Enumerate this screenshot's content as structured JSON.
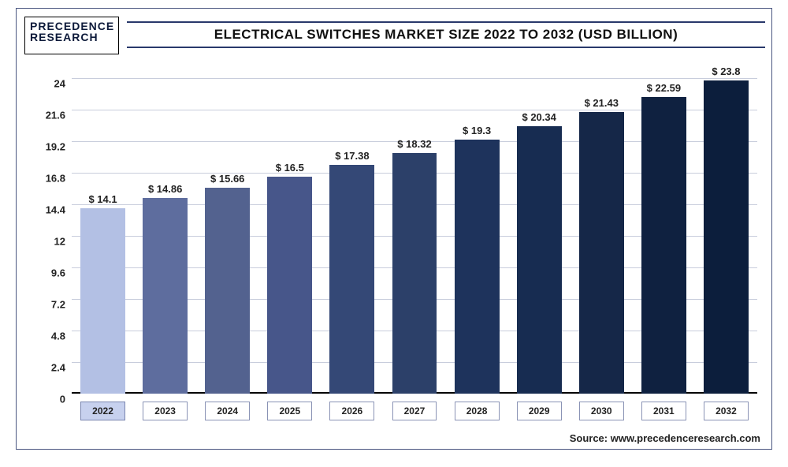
{
  "logo": {
    "line1": "PRECEDENCE",
    "line2": "RESEARCH"
  },
  "chart": {
    "type": "bar",
    "title": "ELECTRICAL SWITCHES MARKET SIZE 2022 TO 2032 (USD BILLION)",
    "source": "Source: www.precedenceresearch.com",
    "background_color": "#ffffff",
    "grid_color": "#c8cddc",
    "border_color": "#4a5680",
    "ylim": [
      0,
      24
    ],
    "ytick_step": 2.4,
    "yticks": [
      "0",
      "2.4",
      "4.8",
      "7.2",
      "9.6",
      "12",
      "14.4",
      "16.8",
      "19.2",
      "21.6",
      "24"
    ],
    "categories": [
      "2022",
      "2023",
      "2024",
      "2025",
      "2026",
      "2027",
      "2028",
      "2029",
      "2030",
      "2031",
      "2032"
    ],
    "values": [
      14.1,
      14.86,
      15.66,
      16.5,
      17.38,
      18.32,
      19.3,
      20.34,
      21.43,
      22.59,
      23.8
    ],
    "value_labels": [
      "$ 14.1",
      "$ 14.86",
      "$ 15.66",
      "$ 16.5",
      "$ 17.38",
      "$ 18.32",
      "$ 19.3",
      "$ 20.34",
      "$ 21.43",
      "$ 22.59",
      "$ 23.8"
    ],
    "bar_colors": [
      "#b3c0e4",
      "#5e6d9e",
      "#53628f",
      "#47568a",
      "#344876",
      "#2c4069",
      "#1e335c",
      "#172c51",
      "#152748",
      "#0f2140",
      "#0c1e3c"
    ],
    "highlight_index": 0,
    "bar_width_ratio": 0.72,
    "title_fontsize": 17,
    "label_fontsize": 13,
    "xlabel_fontsize": 12
  }
}
